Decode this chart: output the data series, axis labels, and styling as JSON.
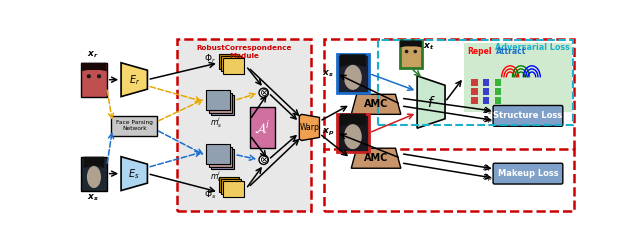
{
  "fig_width": 6.4,
  "fig_height": 2.47,
  "dpi": 100,
  "rcm_title": "RobustCorrespondence\nModule",
  "face_parsing_label": "Face Parsing\nNetwork",
  "adv_loss_label": "Adversarial Loss",
  "struct_loss_label": "Structure Loss",
  "makeup_loss_label": "Makeup Loss",
  "repel_label": "Repel",
  "attract_label": "Attract",
  "warp_label": "Warp",
  "amc_label": "AMC",
  "red_box_color": "#cc0000",
  "blue_dashed_color": "#1a6ecc",
  "yellow_dashed_color": "#e6a800",
  "green_box_color": "#2a7a2a",
  "encoder_r_fill": "#f5d76e",
  "encoder_s_fill": "#aed6f1",
  "face_parsing_fill": "#c8c8c8",
  "warp_fill": "#f0a050",
  "amc_fill": "#c8956a",
  "loss_fill": "#7fa0c8",
  "adv_bg_fill": "#c8e8c0",
  "rcm_bg_fill": "#e8e8e8",
  "ai_fill": "#d070a0",
  "f_fill": "#c8e8d0",
  "repel_bg": "#d0ead0",
  "img_r_colors": [
    "#8b1a1a",
    "#cc3333",
    "#d4556a"
  ],
  "img_s_colors": [
    "#1a1a2e",
    "#2a3a4e",
    "#3a4a5e"
  ],
  "xs_right_colors": [
    "#1a1a28",
    "#2a2a3a",
    "#3a3a4a"
  ],
  "xp_right_colors": [
    "#101018",
    "#202028",
    "#303038"
  ],
  "xt_colors": [
    "#c0a060",
    "#b09050",
    "#a08040"
  ]
}
